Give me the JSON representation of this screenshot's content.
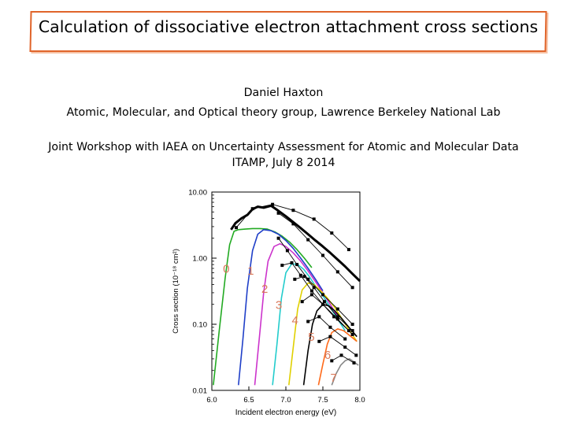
{
  "slide": {
    "title": "Calculation of dissociative electron attachment cross sections",
    "author": "Daniel Haxton",
    "affiliation": "Atomic, Molecular, and Optical theory group, Lawrence Berkeley National Lab",
    "event": "Joint Workshop with IAEA on Uncertainty Assessment for Atomic and Molecular Data",
    "venue_date": "ITAMP, July 8 2014"
  },
  "chart_data": {
    "type": "line",
    "title": "",
    "xlabel": "Incident electron energy (eV)",
    "ylabel": "Cross section (10⁻¹⁸ cm²)",
    "xlim": [
      6.0,
      8.0
    ],
    "ylim": [
      0.01,
      10.0
    ],
    "yscale": "log",
    "x_ticks": [
      "6.0",
      "6.5",
      "7.0",
      "7.5",
      "8.0"
    ],
    "y_ticks": [
      {
        "label": "10.00",
        "value": 10.0
      },
      {
        "label": "1.00",
        "value": 1.0
      },
      {
        "label": "0.10",
        "value": 0.1
      },
      {
        "label": "0.01",
        "value": 0.01
      }
    ],
    "grid": false,
    "series": [
      {
        "name": "0",
        "color": "#22aa22",
        "label_at": [
          6.15,
          0.6
        ],
        "x": [
          6.02,
          6.1,
          6.18,
          6.24,
          6.3,
          6.36,
          6.45,
          6.55,
          6.65,
          6.75,
          6.85,
          6.95,
          7.05,
          7.15,
          7.25,
          7.35
        ],
        "y": [
          0.012,
          0.08,
          0.5,
          1.6,
          2.55,
          2.7,
          2.75,
          2.8,
          2.8,
          2.75,
          2.5,
          2.15,
          1.75,
          1.35,
          1.0,
          0.72
        ]
      },
      {
        "name": "1",
        "color": "#1f3fc8",
        "label_at": [
          6.48,
          0.56
        ],
        "x": [
          6.36,
          6.42,
          6.48,
          6.55,
          6.62,
          6.7,
          6.8,
          6.9,
          7.0,
          7.1,
          7.2,
          7.3,
          7.4,
          7.5
        ],
        "y": [
          0.012,
          0.06,
          0.35,
          1.3,
          2.3,
          2.7,
          2.6,
          2.3,
          1.85,
          1.4,
          1.0,
          0.7,
          0.48,
          0.32
        ]
      },
      {
        "name": "2",
        "color": "#cc33cc",
        "label_at": [
          6.67,
          0.3
        ],
        "x": [
          6.58,
          6.64,
          6.7,
          6.76,
          6.84,
          6.92,
          7.0,
          7.1,
          7.2,
          7.3,
          7.4,
          7.5,
          7.6,
          7.7
        ],
        "y": [
          0.012,
          0.06,
          0.3,
          0.9,
          1.5,
          1.65,
          1.5,
          1.2,
          0.9,
          0.64,
          0.44,
          0.3,
          0.2,
          0.13
        ]
      },
      {
        "name": "3",
        "color": "#22cccc",
        "label_at": [
          6.86,
          0.17
        ],
        "x": [
          6.82,
          6.88,
          6.94,
          7.0,
          7.08,
          7.16,
          7.24,
          7.32,
          7.4,
          7.5,
          7.6,
          7.7,
          7.8
        ],
        "y": [
          0.012,
          0.05,
          0.25,
          0.6,
          0.82,
          0.8,
          0.68,
          0.52,
          0.38,
          0.27,
          0.18,
          0.12,
          0.08
        ]
      },
      {
        "name": "4",
        "color": "#e0d000",
        "label_at": [
          7.08,
          0.1
        ],
        "x": [
          7.04,
          7.1,
          7.16,
          7.22,
          7.3,
          7.38,
          7.46,
          7.56,
          7.66,
          7.76,
          7.86,
          7.96
        ],
        "y": [
          0.012,
          0.045,
          0.17,
          0.33,
          0.42,
          0.4,
          0.33,
          0.25,
          0.18,
          0.12,
          0.08,
          0.055
        ]
      },
      {
        "name": "5",
        "color": "#000000",
        "label_at": [
          7.3,
          0.056
        ],
        "x": [
          7.24,
          7.3,
          7.36,
          7.42,
          7.5,
          7.58,
          7.66,
          7.76,
          7.86,
          7.96
        ],
        "y": [
          0.012,
          0.04,
          0.1,
          0.16,
          0.2,
          0.19,
          0.16,
          0.12,
          0.088,
          0.065
        ]
      },
      {
        "name": "6",
        "color": "#ff6a1a",
        "label_at": [
          7.52,
          0.03
        ],
        "x": [
          7.44,
          7.5,
          7.56,
          7.62,
          7.7,
          7.78,
          7.86,
          7.96
        ],
        "y": [
          0.012,
          0.025,
          0.05,
          0.075,
          0.085,
          0.08,
          0.068,
          0.055
        ]
      },
      {
        "name": "7",
        "color": "#888888",
        "label_at": [
          7.6,
          0.0135
        ],
        "x": [
          7.62,
          7.68,
          7.74,
          7.8,
          7.86,
          7.92,
          7.98
        ],
        "y": [
          0.012,
          0.018,
          0.024,
          0.028,
          0.03,
          0.027,
          0.024
        ]
      },
      {
        "name": "",
        "color": "#000000",
        "width": 3,
        "x": [
          6.26,
          6.32,
          6.4,
          6.48,
          6.55,
          6.62,
          6.7,
          6.8,
          6.9,
          7.0,
          7.1,
          7.2,
          7.3,
          7.4,
          7.5,
          7.6,
          7.7,
          7.8,
          7.9,
          8.0
        ],
        "y": [
          2.7,
          3.4,
          4.0,
          4.5,
          5.5,
          6.0,
          5.8,
          6.2,
          5.2,
          4.3,
          3.5,
          2.85,
          2.3,
          1.85,
          1.5,
          1.2,
          0.95,
          0.75,
          0.58,
          0.45
        ]
      }
    ],
    "marker_series": [
      {
        "x": [
          6.33,
          6.55,
          6.82,
          7.1,
          7.38,
          7.62,
          7.85
        ],
        "y": [
          2.9,
          5.6,
          6.5,
          5.3,
          3.9,
          2.4,
          1.35
        ]
      },
      {
        "x": [
          6.9,
          7.1,
          7.3,
          7.5,
          7.7,
          7.9
        ],
        "y": [
          4.8,
          3.3,
          1.9,
          1.1,
          0.62,
          0.36
        ]
      },
      {
        "x": [
          6.9,
          7.02,
          7.15,
          7.3,
          7.5,
          7.7,
          7.9
        ],
        "y": [
          2.0,
          1.3,
          0.8,
          0.48,
          0.28,
          0.17,
          0.1
        ]
      },
      {
        "x": [
          6.95,
          7.08,
          7.2,
          7.35,
          7.5,
          7.7,
          7.9
        ],
        "y": [
          0.78,
          0.85,
          0.55,
          0.32,
          0.2,
          0.12,
          0.07
        ]
      },
      {
        "x": [
          7.12,
          7.25,
          7.38,
          7.52,
          7.7,
          7.9
        ],
        "y": [
          0.48,
          0.53,
          0.36,
          0.22,
          0.13,
          0.08
        ]
      },
      {
        "x": [
          7.22,
          7.35,
          7.5,
          7.65,
          7.85
        ],
        "y": [
          0.22,
          0.28,
          0.2,
          0.13,
          0.08
        ]
      },
      {
        "x": [
          7.3,
          7.45,
          7.6,
          7.8
        ],
        "y": [
          0.11,
          0.13,
          0.09,
          0.06
        ]
      },
      {
        "x": [
          7.45,
          7.6,
          7.8,
          7.95
        ],
        "y": [
          0.055,
          0.065,
          0.045,
          0.034
        ]
      },
      {
        "x": [
          7.62,
          7.75,
          7.92
        ],
        "y": [
          0.028,
          0.034,
          0.026
        ]
      }
    ]
  }
}
